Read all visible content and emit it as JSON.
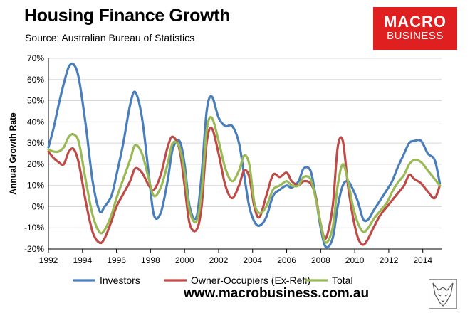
{
  "title": "Housing Finance Growth",
  "subtitle": "Source: Australian Bureau of Statistics",
  "logo": {
    "line1": "MACRO",
    "line2": "BUSINESS"
  },
  "footer_url": "www.macrobusiness.com.au",
  "icons": {
    "fox": "fox-sketch-logo-icon"
  },
  "colors": {
    "investors": "#4a7ebb",
    "owner_occupiers": "#be4b48",
    "total": "#98b954",
    "logo_bg": "#e02020"
  },
  "chart_data": {
    "type": "line",
    "title": "Housing Finance Growth",
    "ylabel": "Annual Growth Rate",
    "xlabel": "",
    "ylim": [
      -20,
      70
    ],
    "xlim": [
      1992,
      2015.1
    ],
    "yticks": [
      -20,
      -10,
      0,
      10,
      20,
      30,
      40,
      50,
      60,
      70
    ],
    "ytick_labels": [
      "-20%",
      "-10%",
      "0%",
      "10%",
      "20%",
      "30%",
      "40%",
      "50%",
      "60%",
      "70%"
    ],
    "xticks": [
      1992,
      1994,
      1996,
      1998,
      2000,
      2002,
      2004,
      2006,
      2008,
      2010,
      2012,
      2014
    ],
    "xtick_labels": [
      "1992",
      "1994",
      "1996",
      "1998",
      "2000",
      "2002",
      "2004",
      "2006",
      "2008",
      "2010",
      "2012",
      "2014"
    ],
    "grid": "horizontal",
    "legend_position": "bottom",
    "series": [
      {
        "name": "Investors",
        "x": [
          1992.0,
          1992.3,
          1992.6,
          1992.9,
          1993.2,
          1993.5,
          1993.8,
          1994.2,
          1994.6,
          1995.0,
          1995.3,
          1995.7,
          1996.0,
          1996.4,
          1996.8,
          1997.1,
          1997.5,
          1997.9,
          1998.2,
          1998.6,
          1999.0,
          1999.3,
          1999.7,
          2000.0,
          2000.3,
          2000.7,
          2001.0,
          2001.3,
          2001.6,
          2002.0,
          2002.4,
          2002.8,
          2003.2,
          2003.5,
          2003.8,
          2004.1,
          2004.4,
          2004.8,
          2005.2,
          2005.6,
          2006.0,
          2006.3,
          2006.7,
          2007.0,
          2007.4,
          2007.7,
          2008.0,
          2008.3,
          2008.7,
          2009.0,
          2009.3,
          2009.6,
          2009.9,
          2010.2,
          2010.5,
          2010.8,
          2011.1,
          2011.5,
          2011.9,
          2012.2,
          2012.5,
          2012.9,
          2013.2,
          2013.5,
          2013.9,
          2014.3,
          2014.7,
          2015.0
        ],
        "values": [
          28,
          37,
          48,
          58,
          66,
          67,
          60,
          38,
          12,
          -2,
          0,
          5,
          15,
          30,
          48,
          54,
          42,
          15,
          -4,
          -3,
          12,
          27,
          31,
          20,
          0,
          -5,
          15,
          45,
          52,
          42,
          38,
          38,
          30,
          15,
          0,
          -7,
          -9,
          -5,
          5,
          8,
          10,
          9,
          12,
          18,
          17,
          5,
          -10,
          -19,
          -15,
          0,
          10,
          12,
          8,
          2,
          -6,
          -6,
          -2,
          3,
          8,
          12,
          18,
          25,
          30,
          31,
          31,
          25,
          22,
          11
        ]
      },
      {
        "name": "Owner-Occupiers (Ex-Refi)",
        "x": [
          1992.0,
          1992.3,
          1992.6,
          1992.9,
          1993.2,
          1993.5,
          1993.8,
          1994.2,
          1994.6,
          1995.0,
          1995.3,
          1995.7,
          1996.0,
          1996.4,
          1996.8,
          1997.1,
          1997.5,
          1997.9,
          1998.2,
          1998.6,
          1999.0,
          1999.3,
          1999.7,
          2000.0,
          2000.3,
          2000.7,
          2001.0,
          2001.3,
          2001.6,
          2002.0,
          2002.4,
          2002.8,
          2003.2,
          2003.5,
          2003.8,
          2004.1,
          2004.4,
          2004.8,
          2005.2,
          2005.6,
          2006.0,
          2006.3,
          2006.7,
          2007.0,
          2007.4,
          2007.7,
          2008.0,
          2008.3,
          2008.7,
          2009.0,
          2009.3,
          2009.6,
          2009.9,
          2010.2,
          2010.5,
          2010.8,
          2011.1,
          2011.5,
          2011.9,
          2012.2,
          2012.5,
          2012.9,
          2013.2,
          2013.5,
          2013.9,
          2014.3,
          2014.7,
          2015.0
        ],
        "values": [
          26,
          23,
          21,
          20,
          26,
          27,
          20,
          2,
          -12,
          -17,
          -15,
          -7,
          0,
          6,
          12,
          18,
          16,
          10,
          8,
          15,
          28,
          33,
          27,
          10,
          -8,
          -11,
          0,
          30,
          37,
          25,
          10,
          4,
          10,
          17,
          14,
          0,
          -5,
          5,
          15,
          14,
          16,
          12,
          10,
          12,
          11,
          5,
          -8,
          -15,
          0,
          28,
          31,
          10,
          -5,
          -15,
          -18,
          -15,
          -10,
          -4,
          0,
          3,
          6,
          10,
          15,
          13,
          11,
          7,
          4,
          10
        ]
      },
      {
        "name": "Total",
        "x": [
          1992.0,
          1992.3,
          1992.6,
          1992.9,
          1993.2,
          1993.5,
          1993.8,
          1994.2,
          1994.6,
          1995.0,
          1995.3,
          1995.7,
          1996.0,
          1996.4,
          1996.8,
          1997.1,
          1997.5,
          1997.9,
          1998.2,
          1998.6,
          1999.0,
          1999.3,
          1999.7,
          2000.0,
          2000.3,
          2000.7,
          2001.0,
          2001.3,
          2001.6,
          2002.0,
          2002.4,
          2002.8,
          2003.2,
          2003.5,
          2003.8,
          2004.1,
          2004.4,
          2004.8,
          2005.2,
          2005.6,
          2006.0,
          2006.3,
          2006.7,
          2007.0,
          2007.4,
          2007.7,
          2008.0,
          2008.3,
          2008.7,
          2009.0,
          2009.3,
          2009.6,
          2009.9,
          2010.2,
          2010.5,
          2010.8,
          2011.1,
          2011.5,
          2011.9,
          2012.2,
          2012.5,
          2012.9,
          2013.2,
          2013.5,
          2013.9,
          2014.3,
          2014.7,
          2015.0
        ],
        "values": [
          27,
          26,
          26,
          28,
          33,
          34,
          30,
          12,
          -4,
          -12,
          -11,
          -4,
          4,
          13,
          22,
          29,
          25,
          13,
          5,
          9,
          20,
          30,
          28,
          16,
          -2,
          -7,
          7,
          36,
          42,
          31,
          18,
          12,
          17,
          24,
          20,
          2,
          -3,
          0,
          8,
          10,
          12,
          10,
          10,
          14,
          13,
          4,
          -8,
          -17,
          -10,
          10,
          20,
          12,
          0,
          -8,
          -12,
          -10,
          -6,
          -2,
          2,
          7,
          11,
          15,
          20,
          22,
          21,
          17,
          13,
          10
        ]
      }
    ]
  }
}
